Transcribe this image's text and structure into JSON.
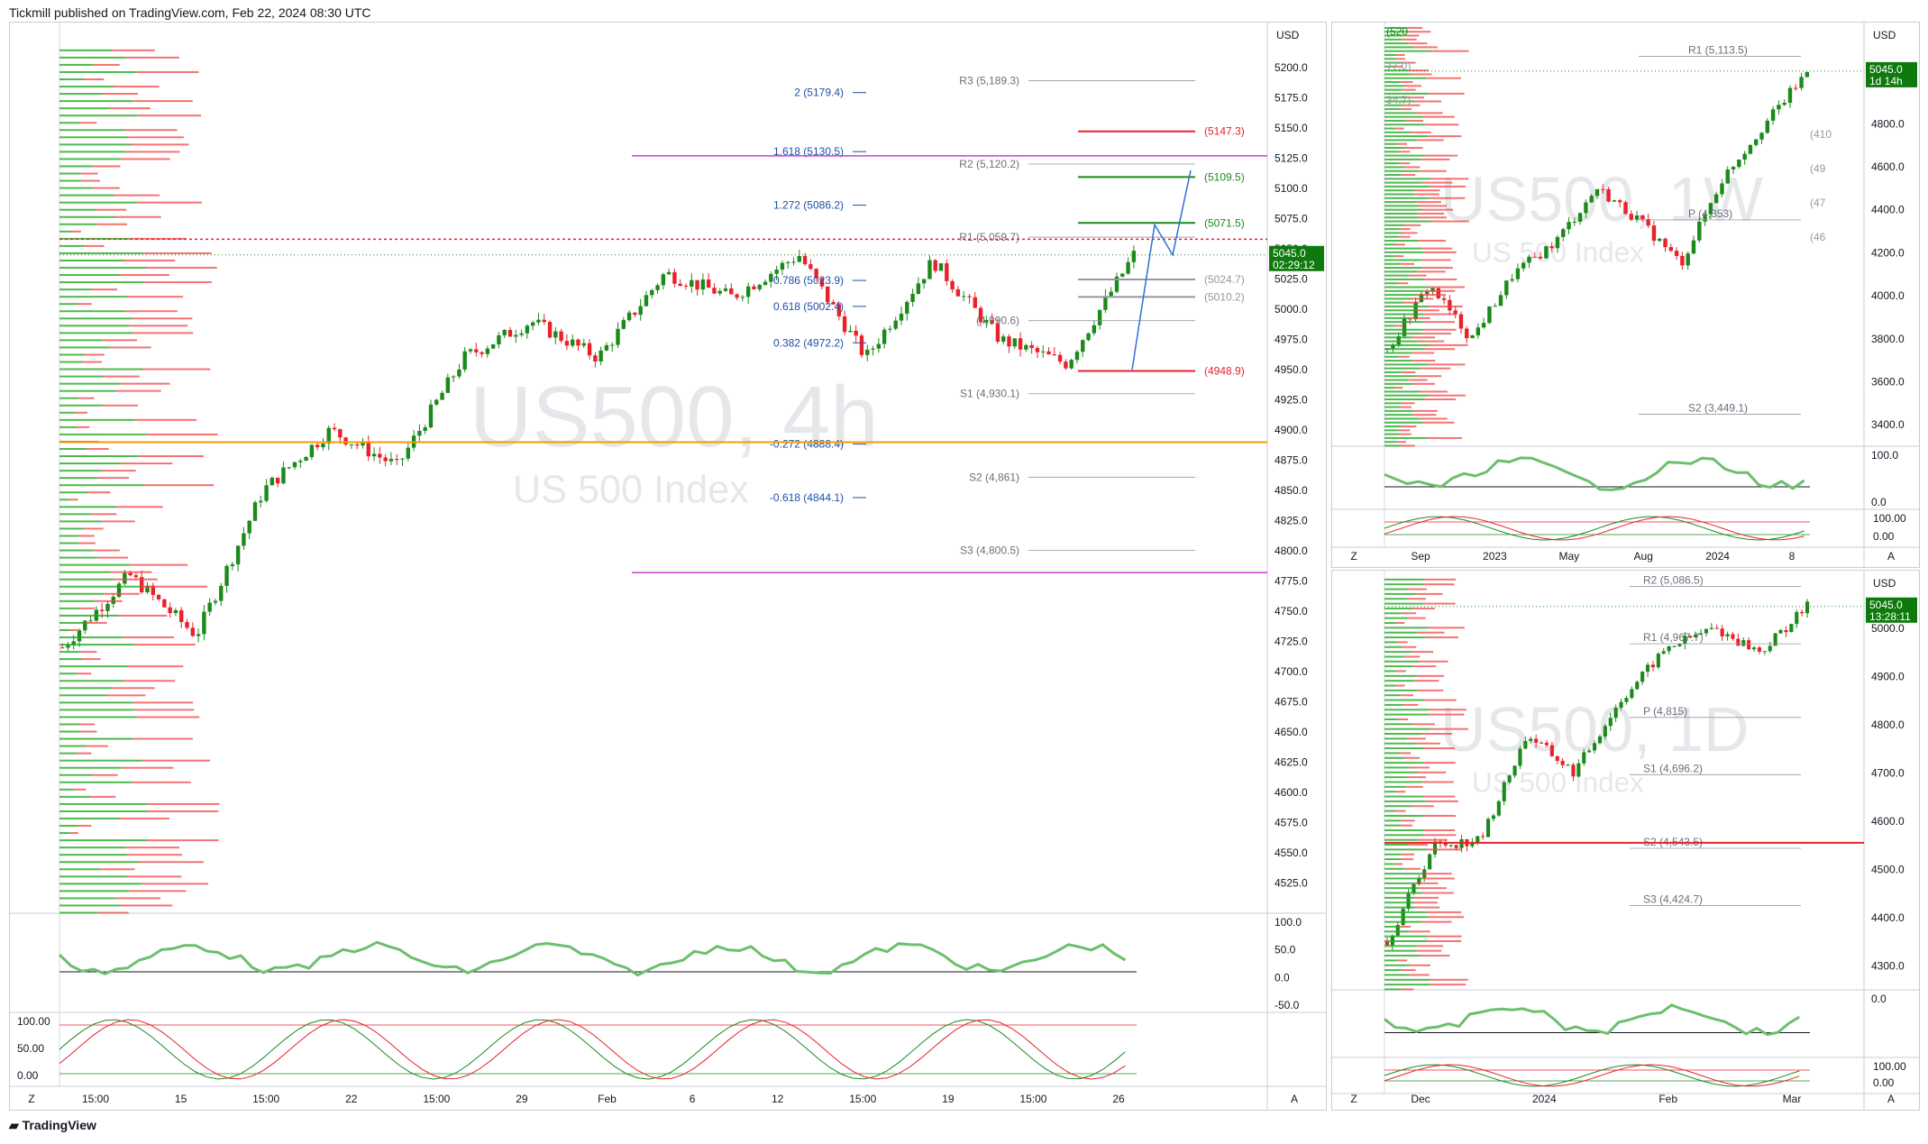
{
  "header": {
    "text": "Tickmill published on TradingView.com, Feb 22, 2024 08:30 UTC"
  },
  "footer": {
    "logo_text": "TradingView",
    "logo_icon": "tradingview-logo-icon"
  },
  "colors": {
    "up": "#1b8a1b",
    "down": "#e8212b",
    "fib": "#1f4fa8",
    "pivot": "#9598a1",
    "price_tag": "#0e7a0d"
  },
  "chart_data": [
    {
      "type": "candlestick",
      "symbol": "US500, 4h",
      "subtitle": "US 500 Index",
      "currency": "USD",
      "ylim": [
        4500,
        5215
      ],
      "y_ticks": [
        4525,
        4550,
        4575,
        4600,
        4625,
        4650,
        4675,
        4700,
        4725,
        4750,
        4775,
        4800,
        4825,
        4850,
        4875,
        4900,
        4925,
        4950,
        4975,
        5000,
        5025,
        5050,
        5075,
        5100,
        5125,
        5150,
        5175,
        5200
      ],
      "x_ticks": [
        "15:00",
        "15",
        "15:00",
        "22",
        "15:00",
        "29",
        "Feb",
        "6",
        "12",
        "15:00",
        "19",
        "15:00",
        "26"
      ],
      "last_price": "5045.0",
      "countdown": "02:29:12",
      "fib_levels": [
        {
          "label": "2 (5179.4)",
          "value": 5179.4
        },
        {
          "label": "1.618 (5130.5)",
          "value": 5130.5
        },
        {
          "label": "1.272 (5086.2)",
          "value": 5086.2
        },
        {
          "label": "0.786 (5023.9)",
          "value": 5023.9
        },
        {
          "label": "0.618 (5002.4)",
          "value": 5002.4
        },
        {
          "label": "0.382 (4972.2)",
          "value": 4972.2
        },
        {
          "label": "-0.272 (4888.4)",
          "value": 4888.4
        },
        {
          "label": "-0.618 (4844.1)",
          "value": 4844.1
        }
      ],
      "pivot_levels": [
        {
          "label": "R3 (5,189.3)",
          "value": 5189.3
        },
        {
          "label": "R2 (5,120.2)",
          "value": 5120.2
        },
        {
          "label": "R1 (5,059.7)",
          "value": 5059.7
        },
        {
          "label": "(4,990.6)",
          "value": 4990.6
        },
        {
          "label": "S1 (4,930.1)",
          "value": 4930.1
        },
        {
          "label": "S2 (4,861)",
          "value": 4861
        },
        {
          "label": "S3 (4,800.5)",
          "value": 4800.5
        }
      ],
      "target_levels": [
        {
          "label": "(5147.3)",
          "value": 5147.3,
          "color": "#e8212b"
        },
        {
          "label": "(5109.5)",
          "value": 5109.5,
          "color": "#1b8a1b"
        },
        {
          "label": "(5071.5)",
          "value": 5071.5,
          "color": "#1b8a1b"
        },
        {
          "label": "(5024.7)",
          "value": 5024.7,
          "color": "#9598a1"
        },
        {
          "label": "(5010.2)",
          "value": 5010.2,
          "color": "#9598a1"
        },
        {
          "label": "(4948.9)",
          "value": 4948.9,
          "color": "#e8212b"
        }
      ],
      "rsi_ticks": [
        "100.0",
        "50.0",
        "0.0",
        "-50.0"
      ],
      "stoch_ticks": [
        "100.00",
        "50.00",
        "0.00"
      ],
      "corner_labels": {
        "left": "Z",
        "right": "A"
      }
    },
    {
      "type": "candlestick",
      "symbol": "US500, 1W",
      "subtitle": "US 500 Index",
      "currency": "USD",
      "ylim": [
        3300,
        5250
      ],
      "y_ticks": [
        3400,
        3600,
        3800,
        4000,
        4200,
        4400,
        4600,
        4800
      ],
      "x_ticks": [
        "Sep",
        "2023",
        "May",
        "Aug",
        "2024",
        "8"
      ],
      "last_price": "5045.0",
      "countdown": "1d 14h",
      "pivot_labels": [
        "R1 (5,113.5)",
        "P (4,353)",
        "S2 (3,449.1)"
      ],
      "partial_labels": [
        "(520",
        "77.0)",
        "34.7)",
        "(410",
        "(49",
        "(47",
        "(46"
      ],
      "rsi_ticks": [
        "100.0",
        "0.0"
      ],
      "stoch_ticks": [
        "100.00",
        "0.00"
      ],
      "corner_labels": {
        "left": "Z",
        "right": "A"
      }
    },
    {
      "type": "candlestick",
      "symbol": "US500, 1D",
      "subtitle": "US 500 Index",
      "currency": "USD",
      "ylim": [
        4250,
        5110
      ],
      "y_ticks": [
        4300,
        4400,
        4500,
        4600,
        4700,
        4800,
        4900,
        5000
      ],
      "x_ticks": [
        "Dec",
        "2024",
        "Feb",
        "Mar"
      ],
      "last_price": "5045.0",
      "countdown": "13:28:11",
      "pivot_labels": [
        "R2 (5,086.5)",
        "R1 (4,967.7)",
        "P (4,815)",
        "S1 (4,696.2)",
        "S2 (4,543.5)",
        "S3 (4,424.7)"
      ],
      "rsi_ticks": [
        "0.0"
      ],
      "stoch_ticks": [
        "100.00",
        "0.00"
      ],
      "corner_labels": {
        "left": "Z",
        "right": "A"
      }
    }
  ]
}
